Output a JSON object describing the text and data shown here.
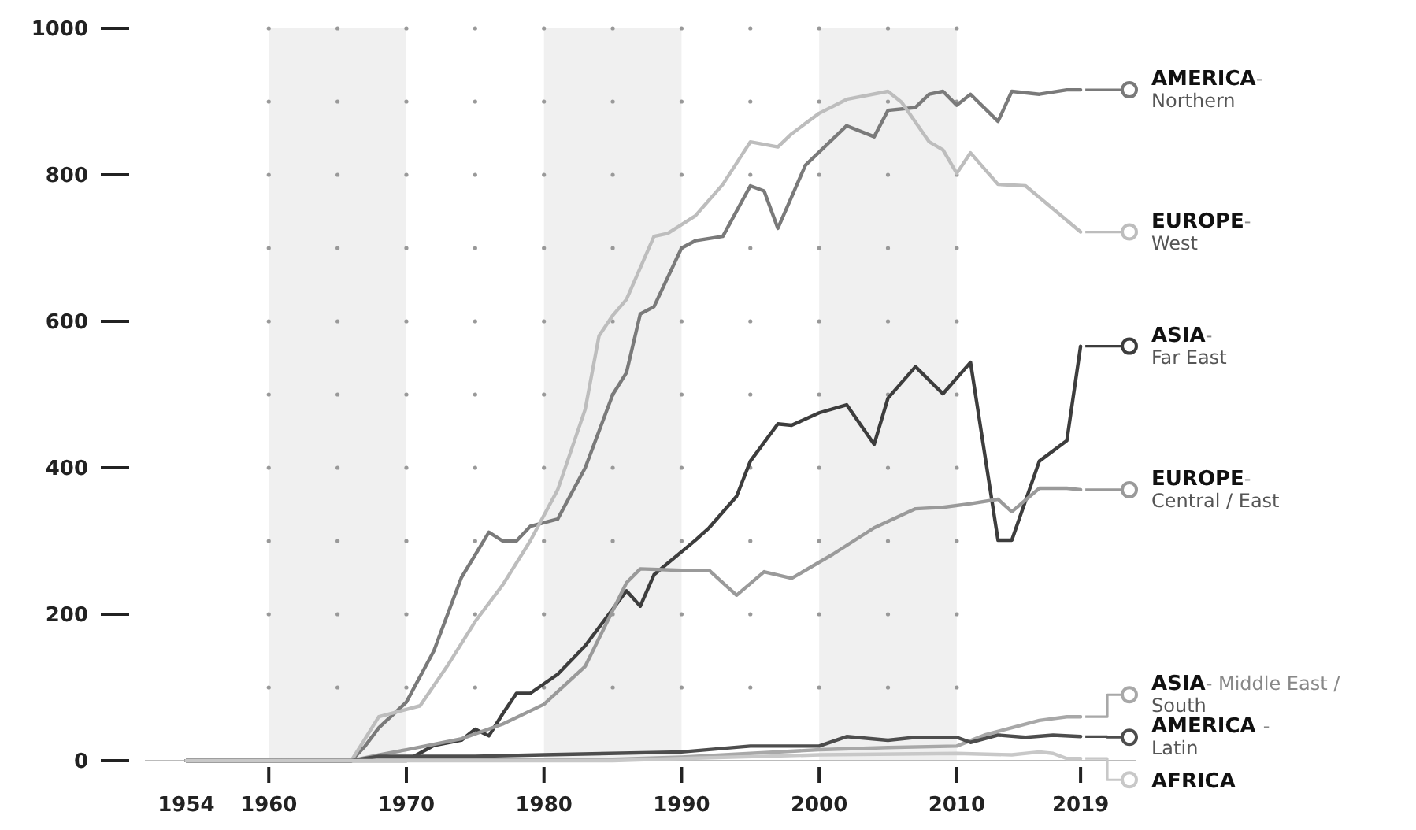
{
  "chart_data": {
    "type": "line",
    "xlim": [
      1951,
      2023
    ],
    "xticks": [
      1954,
      1960,
      1970,
      1980,
      1990,
      2000,
      2010,
      2019
    ],
    "ylim": [
      0,
      1000
    ],
    "yticks": [
      0,
      200,
      400,
      600,
      800,
      1000
    ],
    "legend": "right",
    "marker": "none",
    "line_style": "solid",
    "bands": [
      {
        "axis": "x",
        "from": 1960,
        "to": 1970,
        "color": "#f0f0f0"
      },
      {
        "axis": "x",
        "from": 1980,
        "to": 1990,
        "color": "#f0f0f0"
      },
      {
        "axis": "x",
        "from": 2000,
        "to": 2010,
        "color": "#f0f0f0"
      }
    ],
    "series": [
      {
        "name": "AMERICA-\nNorthern",
        "color": "#7a7a7a",
        "x": [
          1954,
          1966,
          1967,
          1968,
          1970,
          1972,
          1974,
          1976,
          1977,
          1978,
          1979,
          1981,
          1983,
          1985,
          1986,
          1987,
          1988,
          1990,
          1991,
          1993,
          1995,
          1996,
          1997,
          1999,
          2002,
          2004,
          2005,
          2007,
          2008,
          2009,
          2010,
          2011,
          2013,
          2014,
          2016,
          2018,
          2019
        ],
        "values": [
          0,
          0,
          20,
          45,
          80,
          150,
          250,
          312,
          300,
          300,
          320,
          330,
          400,
          500,
          530,
          610,
          620,
          700,
          710,
          716,
          785,
          778,
          727,
          813,
          867,
          852,
          888,
          892,
          910,
          914,
          895,
          910,
          873,
          914,
          910,
          916,
          916
        ]
      },
      {
        "name": "EUROPE-\nWest",
        "color": "#bdbdbd",
        "x": [
          1954,
          1966,
          1967,
          1968,
          1970,
          1971,
          1973,
          1975,
          1977,
          1979,
          1981,
          1983,
          1984,
          1985,
          1986,
          1988,
          1989,
          1991,
          1993,
          1995,
          1997,
          1998,
          2000,
          2002,
          2005,
          2006,
          2008,
          2009,
          2010,
          2011,
          2013,
          2015,
          2019
        ],
        "values": [
          0,
          0,
          30,
          60,
          70,
          75,
          130,
          190,
          240,
          300,
          370,
          480,
          580,
          608,
          630,
          716,
          720,
          744,
          787,
          845,
          838,
          856,
          884,
          903,
          914,
          899,
          845,
          834,
          802,
          830,
          787,
          785,
          722
        ]
      },
      {
        "name": "ASIA-\nFar East",
        "color": "#3d3d3d",
        "x": [
          1954,
          1970,
          1972,
          1974,
          1975,
          1976,
          1977,
          1978,
          1979,
          1981,
          1983,
          1986,
          1987,
          1988,
          1991,
          1992,
          1994,
          1995,
          1997,
          1998,
          2000,
          2002,
          2004,
          2005,
          2007,
          2009,
          2011,
          2013,
          2014,
          2016,
          2018,
          2019
        ],
        "values": [
          0,
          0,
          21,
          28,
          43,
          34,
          64,
          92,
          92,
          118,
          157,
          232,
          211,
          254,
          301,
          318,
          361,
          409,
          460,
          458,
          475,
          486,
          432,
          495,
          538,
          501,
          544,
          301,
          301,
          409,
          437,
          566
        ]
      },
      {
        "name": "EUROPE-\nCentral / East",
        "color": "#9a9a9a",
        "x": [
          1954,
          1966,
          1968,
          1970,
          1974,
          1977,
          1980,
          1983,
          1986,
          1987,
          1990,
          1992,
          1993,
          1994,
          1996,
          1998,
          2001,
          2004,
          2007,
          2009,
          2011,
          2013,
          2014,
          2016,
          2018,
          2019
        ],
        "values": [
          0,
          0,
          8,
          15,
          30,
          50,
          77,
          129,
          243,
          262,
          260,
          260,
          243,
          226,
          258,
          249,
          282,
          318,
          344,
          346,
          351,
          357,
          340,
          372,
          372,
          370
        ]
      },
      {
        "name": "ASIA- Middle East /\nSouth",
        "color": "#a8a8a8",
        "x": [
          1954,
          1985,
          1990,
          1995,
          2000,
          2005,
          2010,
          2012,
          2014,
          2016,
          2018,
          2019
        ],
        "values": [
          0,
          2,
          5,
          10,
          15,
          18,
          20,
          35,
          45,
          55,
          60,
          60
        ]
      },
      {
        "name": "AMERICA -\nLatin",
        "color": "#4d4d4d",
        "x": [
          1954,
          1966,
          1968,
          1975,
          1980,
          1990,
          1995,
          2000,
          2002,
          2005,
          2007,
          2010,
          2011,
          2013,
          2015,
          2017,
          2019
        ],
        "values": [
          0,
          0,
          6,
          6,
          8,
          12,
          20,
          20,
          33,
          28,
          32,
          32,
          25,
          35,
          32,
          35,
          33
        ]
      },
      {
        "name": "AFRICA",
        "color": "#c8c8c8",
        "x": [
          1954,
          1985,
          1990,
          2000,
          2010,
          2014,
          2016,
          2017,
          2018,
          2019
        ],
        "values": [
          0,
          0,
          3,
          8,
          10,
          8,
          12,
          10,
          3,
          3
        ]
      }
    ]
  }
}
